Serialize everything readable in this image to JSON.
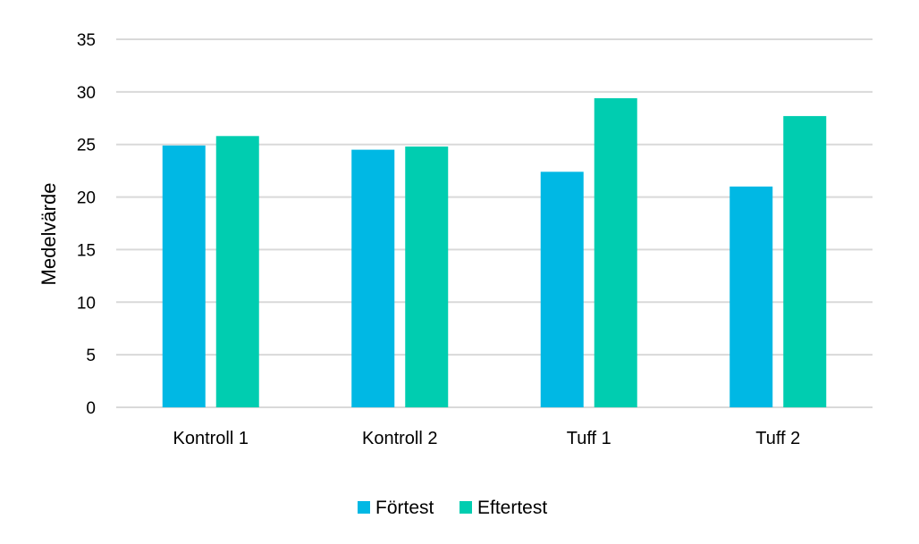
{
  "chart_data": {
    "type": "bar",
    "title": "",
    "xlabel": "",
    "ylabel": "Medelvärde",
    "ylim": [
      0,
      35
    ],
    "yticks": [
      0,
      5,
      10,
      15,
      20,
      25,
      30,
      35
    ],
    "grid": true,
    "legend_position": "bottom",
    "categories": [
      "Kontroll 1",
      "Kontroll 2",
      "Tuff 1",
      "Tuff 2"
    ],
    "series": [
      {
        "name": "Förtest",
        "color": "#00b8e4",
        "values": [
          24.9,
          24.5,
          22.4,
          21.0
        ]
      },
      {
        "name": "Eftertest",
        "color": "#00cdb0",
        "values": [
          25.8,
          24.8,
          29.4,
          27.7
        ]
      }
    ]
  }
}
